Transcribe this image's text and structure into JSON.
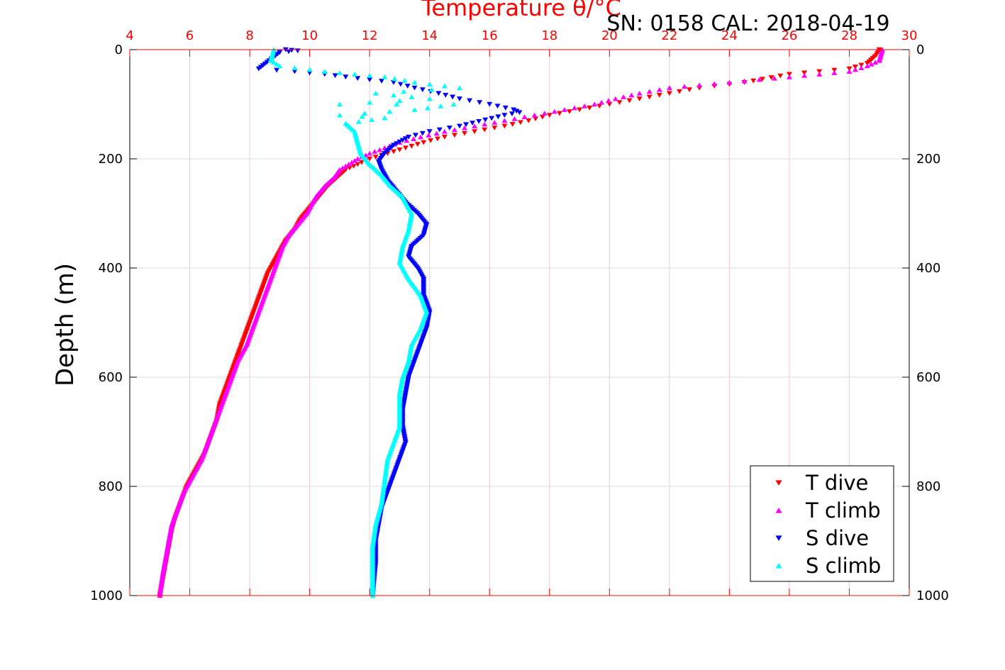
{
  "chart_data": {
    "type": "scatter",
    "title": "Temperature θ/°C",
    "annotation": "SN: 0158  CAL: 2018-04-19",
    "xlabel": "Temperature θ/°C",
    "ylabel": "Depth (m)",
    "xlim": [
      4,
      30
    ],
    "ylim": [
      0,
      1000
    ],
    "y_inverted": true,
    "x_ticks": [
      "4",
      "6",
      "8",
      "10",
      "12",
      "14",
      "16",
      "18",
      "20",
      "22",
      "24",
      "26",
      "28",
      "30"
    ],
    "y_ticks": [
      "0",
      "200",
      "400",
      "600",
      "800",
      "1000"
    ],
    "grid": true,
    "legend_position": "bottom-right",
    "colors": {
      "t_dive": "#ff0000",
      "t_climb": "#ff00ff",
      "s_dive": "#0000ff",
      "s_climb": "#00ffff",
      "axis_top": "#ff0000"
    },
    "series": [
      {
        "name": "T dive",
        "marker": "triangle-down",
        "color": "#ff0000",
        "x": [
          29.0,
          28.9,
          28.6,
          28.0,
          27.0,
          26.0,
          24.5,
          23.0,
          22.0,
          21.0,
          20.0,
          19.0,
          18.0,
          17.3,
          16.5,
          15.5,
          14.5,
          13.8,
          13.2,
          12.6,
          12.0,
          11.6,
          11.2,
          10.9,
          10.6,
          10.3,
          10.0,
          9.7,
          9.5,
          9.2,
          9.0,
          8.8,
          8.6,
          8.4,
          8.2,
          8.0,
          7.8,
          7.6,
          7.4,
          7.2,
          7.0,
          6.9,
          6.7,
          6.5,
          6.3,
          6.1,
          5.9,
          5.7,
          5.5,
          5.4,
          5.3,
          5.2,
          5.1,
          5.0
        ],
        "y": [
          0,
          10,
          25,
          35,
          40,
          45,
          60,
          70,
          80,
          90,
          100,
          110,
          120,
          130,
          140,
          150,
          160,
          170,
          180,
          190,
          200,
          210,
          220,
          235,
          250,
          270,
          290,
          310,
          330,
          350,
          370,
          390,
          410,
          440,
          470,
          500,
          530,
          560,
          590,
          620,
          650,
          680,
          710,
          740,
          760,
          780,
          800,
          830,
          860,
          880,
          910,
          940,
          970,
          1000
        ]
      },
      {
        "name": "T climb",
        "marker": "triangle-up",
        "color": "#ff00ff",
        "x": [
          29.1,
          29.0,
          28.6,
          28.0,
          27.0,
          26.0,
          25.0,
          24.0,
          23.0,
          22.0,
          21.0,
          20.2,
          19.5,
          18.5,
          17.5,
          16.5,
          15.5,
          14.5,
          13.7,
          13.0,
          12.5,
          12.0,
          11.6,
          11.3,
          11.0,
          10.8,
          10.5,
          10.2,
          9.9,
          9.6,
          9.3,
          9.1,
          8.9,
          8.7,
          8.5,
          8.3,
          8.1,
          7.9,
          7.6,
          7.4,
          7.2,
          7.0,
          6.8,
          6.6,
          6.4,
          6.2,
          6.0,
          5.8,
          5.6,
          5.4,
          5.3,
          5.2,
          5.1,
          5.0
        ],
        "y": [
          0,
          20,
          30,
          40,
          45,
          50,
          55,
          60,
          65,
          70,
          80,
          90,
          100,
          110,
          120,
          130,
          140,
          150,
          160,
          170,
          180,
          190,
          200,
          210,
          220,
          235,
          250,
          270,
          300,
          320,
          340,
          360,
          390,
          420,
          450,
          480,
          510,
          540,
          570,
          600,
          630,
          660,
          690,
          720,
          750,
          770,
          790,
          810,
          840,
          870,
          900,
          930,
          960,
          1000
        ]
      },
      {
        "name": "S dive",
        "marker": "triangle-down",
        "color": "#0000ff",
        "x": [
          9.2,
          9.6,
          9.0,
          8.3,
          9.5,
          10.5,
          11.2,
          12.0,
          12.8,
          13.5,
          14.3,
          15.0,
          16.0,
          16.8,
          17.0,
          16.5,
          15.0,
          14.0,
          13.3,
          12.8,
          12.5,
          12.3,
          12.4,
          12.6,
          12.9,
          13.2,
          13.6,
          13.9,
          13.8,
          13.4,
          13.3,
          13.6,
          13.8,
          13.8,
          14.0,
          13.9,
          13.7,
          13.5,
          13.3,
          13.2,
          13.1,
          13.1,
          13.2,
          13.0,
          12.8,
          12.6,
          12.4,
          12.3,
          12.2,
          12.2,
          12.1
        ],
        "y": [
          0,
          2,
          5,
          35,
          40,
          45,
          50,
          55,
          60,
          70,
          80,
          90,
          100,
          110,
          115,
          120,
          140,
          150,
          160,
          175,
          190,
          205,
          220,
          240,
          260,
          280,
          300,
          320,
          340,
          360,
          380,
          400,
          420,
          450,
          480,
          510,
          540,
          570,
          600,
          630,
          660,
          690,
          720,
          750,
          780,
          810,
          840,
          870,
          900,
          940,
          1000
        ]
      },
      {
        "name": "S climb",
        "marker": "triangle-up",
        "color": "#00ffff",
        "x": [
          8.8,
          8.7,
          9.0,
          10.5,
          11.5,
          12.5,
          13.5,
          15.0,
          12.2,
          14.0,
          11.0,
          14.8,
          13.5,
          11.0,
          12.5,
          11.2,
          11.5,
          11.6,
          11.7,
          12.0,
          12.4,
          12.7,
          13.1,
          13.4,
          13.3,
          13.1,
          13.0,
          13.3,
          13.7,
          13.9,
          13.7,
          13.4,
          13.3,
          13.1,
          13.0,
          13.0,
          13.0,
          12.8,
          12.6,
          12.5,
          12.4,
          12.2,
          12.1,
          12.1,
          12.1
        ],
        "y": [
          0,
          20,
          30,
          40,
          45,
          50,
          60,
          70,
          80,
          90,
          100,
          100,
          110,
          120,
          125,
          135,
          150,
          170,
          190,
          210,
          230,
          250,
          270,
          300,
          330,
          360,
          390,
          420,
          450,
          480,
          510,
          540,
          570,
          600,
          630,
          660,
          690,
          720,
          750,
          790,
          830,
          870,
          910,
          950,
          1000
        ]
      }
    ]
  }
}
